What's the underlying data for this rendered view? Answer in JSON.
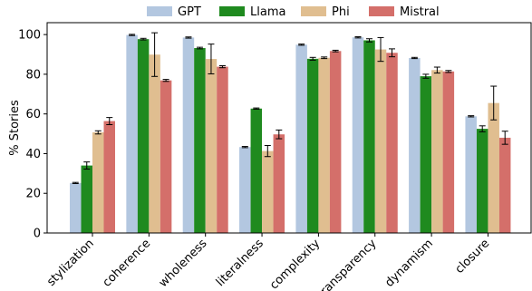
{
  "chart_data": {
    "type": "bar",
    "title": "",
    "xlabel": "",
    "ylabel": "% Stories",
    "ylim": [
      0,
      106
    ],
    "yticks": [
      0,
      20,
      40,
      60,
      80,
      100
    ],
    "grid": false,
    "legend_placement": "top-center",
    "categories": [
      "stylization",
      "coherence",
      "wholeness",
      "literalness",
      "complexity",
      "transparency",
      "dynamism",
      "closure"
    ],
    "series": [
      {
        "name": "GPT",
        "color": "#b3c7e0",
        "values": [
          25.2,
          99.8,
          98.5,
          43.3,
          94.9,
          98.6,
          88.2,
          58.8
        ],
        "errors": [
          0.3,
          0.3,
          0.3,
          0.3,
          0.3,
          0.3,
          0.3,
          0.3
        ]
      },
      {
        "name": "Llama",
        "color": "#1f8a1f",
        "values": [
          34.0,
          97.7,
          93.2,
          62.7,
          87.8,
          97.1,
          79.0,
          52.5
        ],
        "errors": [
          1.8,
          0.4,
          0.4,
          0.3,
          0.7,
          0.8,
          1.0,
          1.5
        ]
      },
      {
        "name": "Phi",
        "color": "#e0be90",
        "values": [
          50.7,
          89.9,
          87.7,
          41.3,
          88.3,
          92.5,
          82.1,
          65.5
        ],
        "errors": [
          0.8,
          11.0,
          7.5,
          2.8,
          0.4,
          6.0,
          1.5,
          8.5
        ]
      },
      {
        "name": "Mistral",
        "color": "#d46f6a",
        "values": [
          56.4,
          76.9,
          83.8,
          49.7,
          91.7,
          90.8,
          81.4,
          48.0
        ],
        "errors": [
          1.8,
          0.5,
          0.5,
          2.2,
          0.4,
          2.0,
          0.5,
          3.3
        ]
      }
    ]
  }
}
